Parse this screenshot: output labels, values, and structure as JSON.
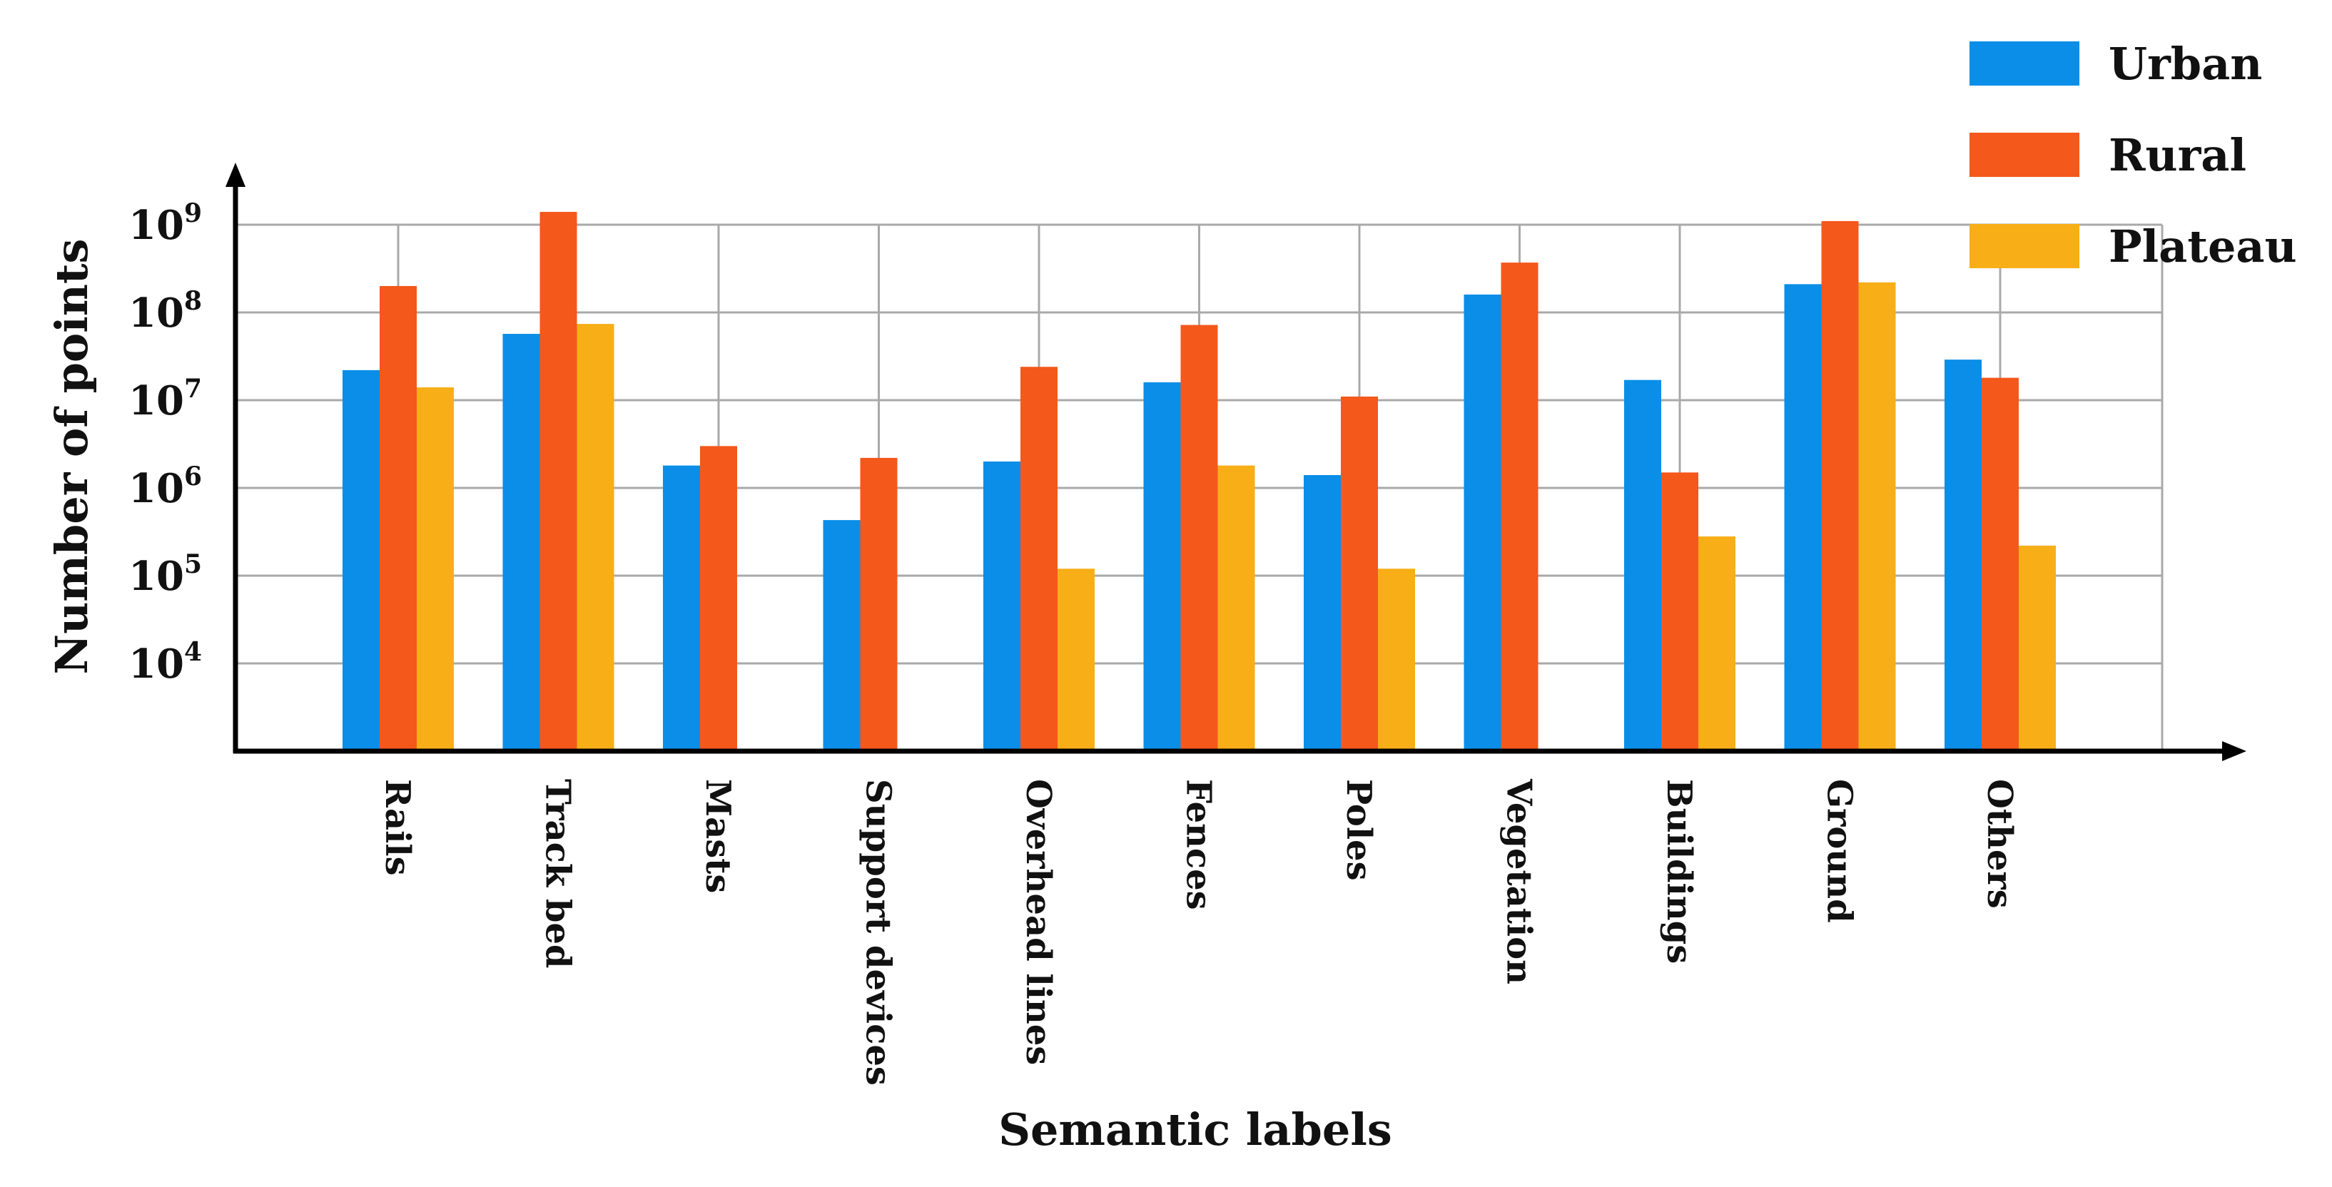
{
  "chart_data": {
    "type": "bar",
    "scale": "log",
    "xlabel": "Semantic labels",
    "ylabel": "Number of points",
    "ylim": [
      1000,
      1000000000
    ],
    "y_ticks": [
      {
        "base": "10",
        "exp": "4",
        "value": 10000
      },
      {
        "base": "10",
        "exp": "5",
        "value": 100000
      },
      {
        "base": "10",
        "exp": "6",
        "value": 1000000
      },
      {
        "base": "10",
        "exp": "7",
        "value": 10000000
      },
      {
        "base": "10",
        "exp": "8",
        "value": 100000000
      },
      {
        "base": "10",
        "exp": "9",
        "value": 1000000000
      }
    ],
    "grid": true,
    "legend_position": "top-right",
    "categories": [
      "Rails",
      "Track bed",
      "Masts",
      "Support devices",
      "Overhead lines",
      "Fences",
      "Poles",
      "Vegetation",
      "Buildings",
      "Ground",
      "Others"
    ],
    "series": [
      {
        "name": "Urban",
        "color": "#0a8ee8",
        "values": [
          22000000,
          57000000,
          1800000,
          430000,
          2000000,
          16000000,
          1400000,
          160000000,
          17000000,
          210000000,
          29000000
        ]
      },
      {
        "name": "Rural",
        "color": "#f4581b",
        "values": [
          200000000,
          1400000000,
          3000000,
          2200000,
          24000000,
          72000000,
          11000000,
          370000000,
          1500000,
          1100000000,
          18000000
        ]
      },
      {
        "name": "Plateau",
        "color": "#f7ae17",
        "values": [
          14000000,
          74000000,
          null,
          null,
          120000,
          1800000,
          120000,
          null,
          280000,
          220000000,
          220000
        ]
      }
    ]
  }
}
